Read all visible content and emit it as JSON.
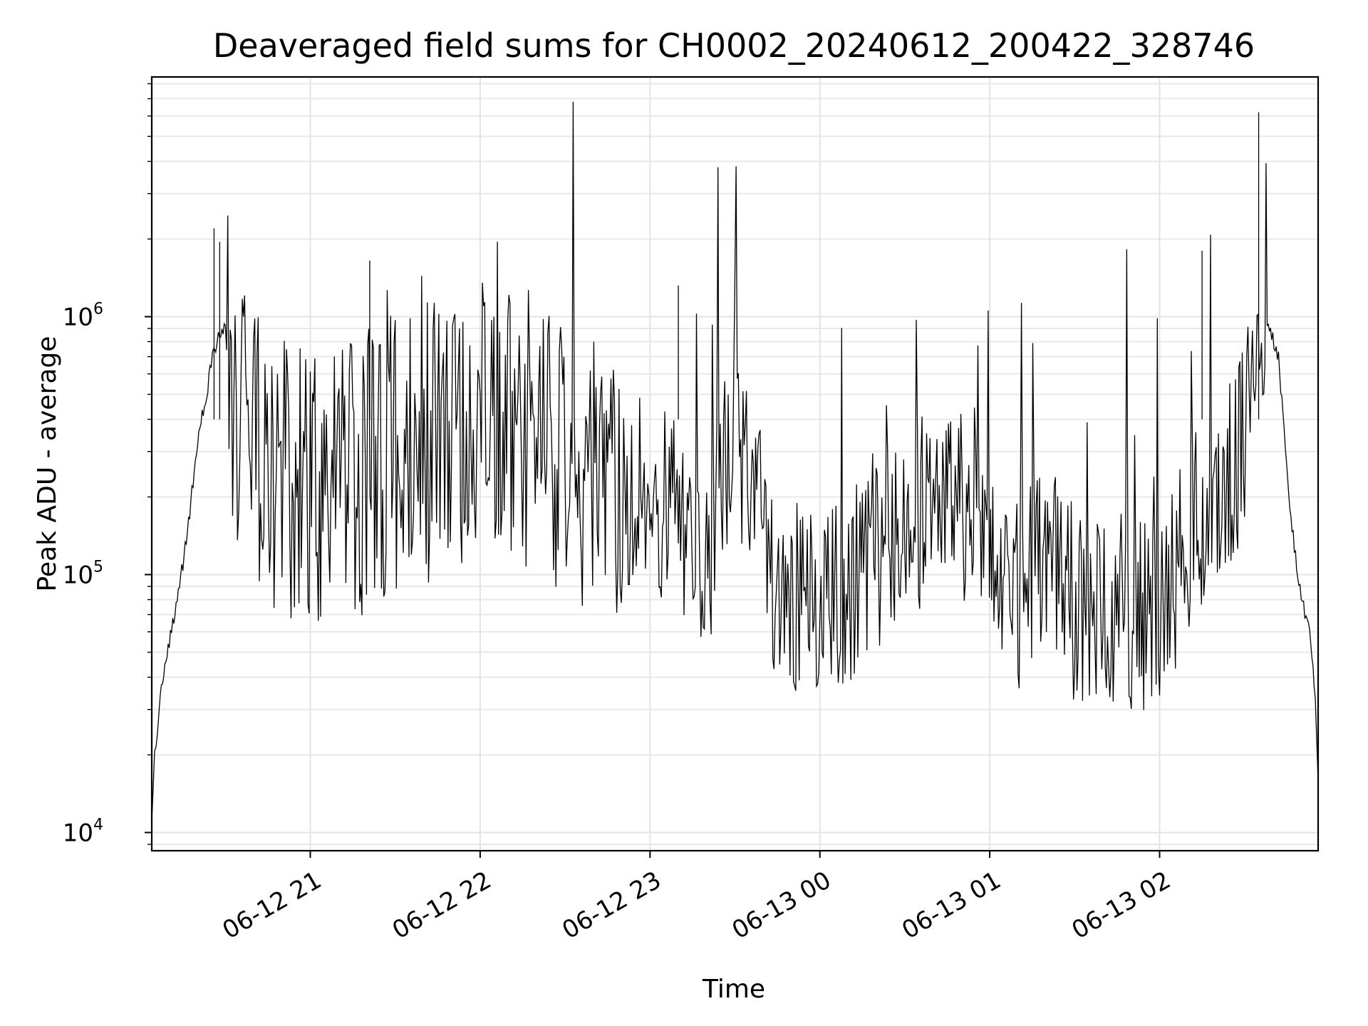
{
  "chart_data": {
    "type": "line",
    "title": "Deaveraged field sums for CH0002_20240612_200422_328746",
    "xlabel": "Time",
    "ylabel": "Peak ADU - average",
    "yscale": "log",
    "grid": true,
    "xlim": [
      "2024-06-12T20:04",
      "2024-06-13T02:56"
    ],
    "ylim": [
      8500,
      8500000
    ],
    "x_ticks": [
      {
        "t": "2024-06-12T21:00",
        "label": "06-12 21"
      },
      {
        "t": "2024-06-12T22:00",
        "label": "06-12 22"
      },
      {
        "t": "2024-06-12T23:00",
        "label": "06-12 23"
      },
      {
        "t": "2024-06-13T00:00",
        "label": "06-13 00"
      },
      {
        "t": "2024-06-13T01:00",
        "label": "06-13 01"
      },
      {
        "t": "2024-06-13T02:00",
        "label": "06-13 02"
      }
    ],
    "y_ticks": [
      {
        "value": 10000,
        "base": "10",
        "exp": "4"
      },
      {
        "value": 100000,
        "base": "10",
        "exp": "5"
      },
      {
        "value": 1000000,
        "base": "10",
        "exp": "6"
      }
    ],
    "line_color": "#000000",
    "series": [
      {
        "x": [
          "2024-06-12T20:04",
          "2024-06-12T20:05",
          "2024-06-12T20:06",
          "2024-06-12T20:07",
          "2024-06-12T20:09",
          "2024-06-12T20:11",
          "2024-06-12T20:13",
          "2024-06-12T20:15",
          "2024-06-12T20:17",
          "2024-06-12T20:19",
          "2024-06-12T20:21",
          "2024-06-12T20:23",
          "2024-06-12T20:25",
          "2024-06-12T20:27",
          "2024-06-12T20:28",
          "2024-06-12T20:30",
          "2024-06-12T20:33",
          "2024-06-12T20:36",
          "2024-06-12T20:40",
          "2024-06-12T20:44",
          "2024-06-12T20:48",
          "2024-06-12T20:52",
          "2024-06-12T20:56",
          "2024-06-12T21:00",
          "2024-06-12T21:15",
          "2024-06-12T21:30",
          "2024-06-12T21:45",
          "2024-06-12T22:00",
          "2024-06-12T22:15",
          "2024-06-12T22:30",
          "2024-06-12T22:45",
          "2024-06-12T23:00",
          "2024-06-12T23:10",
          "2024-06-12T23:20",
          "2024-06-12T23:30",
          "2024-06-12T23:45",
          "2024-06-13T00:00",
          "2024-06-13T00:15",
          "2024-06-13T00:30",
          "2024-06-13T00:45",
          "2024-06-13T00:55",
          "2024-06-13T01:10",
          "2024-06-13T01:20",
          "2024-06-13T01:30",
          "2024-06-13T01:40",
          "2024-06-13T01:50",
          "2024-06-13T02:00",
          "2024-06-13T02:10",
          "2024-06-13T02:20",
          "2024-06-13T02:30",
          "2024-06-13T02:34",
          "2024-06-13T02:38",
          "2024-06-13T02:42",
          "2024-06-13T02:46",
          "2024-06-13T02:50",
          "2024-06-13T02:53",
          "2024-06-13T02:55",
          "2024-06-13T02:56"
        ],
        "y": [
          11000,
          20000,
          24000,
          35000,
          46000,
          60000,
          80000,
          110000,
          160000,
          250000,
          380000,
          480000,
          650000,
          800000,
          870000,
          900000,
          400000,
          380000,
          350000,
          300000,
          250000,
          230000,
          220000,
          210000,
          230000,
          300000,
          330000,
          420000,
          380000,
          270000,
          220000,
          200000,
          170000,
          110000,
          380000,
          90000,
          75000,
          100000,
          180000,
          160000,
          200000,
          80000,
          140000,
          75000,
          65000,
          70000,
          70000,
          140000,
          180000,
          320000,
          900000,
          950000,
          700000,
          180000,
          80000,
          60000,
          35000,
          15000
        ]
      }
    ],
    "spikes": [
      {
        "t": "2024-06-12T20:26",
        "value": 2200000
      },
      {
        "t": "2024-06-12T20:28",
        "value": 1950000
      },
      {
        "t": "2024-06-12T21:21",
        "value": 1650000
      },
      {
        "t": "2024-06-12T23:10",
        "value": 1320000
      },
      {
        "t": "2024-06-13T02:15",
        "value": 1800000
      },
      {
        "t": "2024-06-13T02:35",
        "value": 6200000
      }
    ]
  }
}
